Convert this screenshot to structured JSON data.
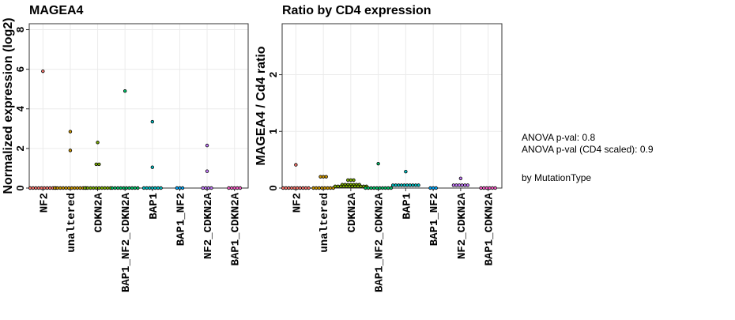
{
  "chart_data": [
    {
      "type": "dotplot",
      "title": "MAGEA4",
      "ylabel": "Normalized expression (log2)",
      "categories": [
        "NF2",
        "unaltered",
        "CDKN2A",
        "BAP1_NF2_CDKN2A",
        "BAP1",
        "BAP1_NF2",
        "NF2_CDKN2A",
        "BAP1_CDKN2A"
      ],
      "colors": [
        "#F8766D",
        "#CD9600",
        "#7CAE00",
        "#00BE67",
        "#00BFC4",
        "#00A9FF",
        "#C77CFF",
        "#FF61CC"
      ],
      "values": [
        [
          5.9,
          0,
          0,
          0,
          0,
          0,
          0,
          0,
          0,
          0,
          0
        ],
        [
          2.85,
          1.9,
          0,
          0,
          0,
          0,
          0,
          0,
          0,
          0,
          0,
          0,
          0,
          0
        ],
        [
          2.3,
          1.2,
          1.2,
          0,
          0,
          0,
          0,
          0,
          0,
          0,
          0,
          0,
          0
        ],
        [
          4.9,
          0,
          0,
          0,
          0,
          0,
          0,
          0,
          0,
          0,
          0
        ],
        [
          3.35,
          1.05,
          0,
          0,
          0,
          0,
          0,
          0,
          0
        ],
        [
          0,
          0,
          0
        ],
        [
          2.15,
          0.85,
          0,
          0,
          0,
          0
        ],
        [
          0,
          0,
          0,
          0,
          0
        ]
      ],
      "ylim": [
        0,
        8.3
      ],
      "yticks": [
        0,
        2,
        4,
        6,
        8
      ],
      "grid": true
    },
    {
      "type": "dotplot",
      "title": "Ratio by CD4 expression",
      "ylabel": "MAGEA4 / Cd4 ratio",
      "categories": [
        "NF2",
        "unaltered",
        "CDKN2A",
        "BAP1_NF2_CDKN2A",
        "BAP1",
        "BAP1_NF2",
        "NF2_CDKN2A",
        "BAP1_CDKN2A"
      ],
      "colors": [
        "#F8766D",
        "#CD9600",
        "#7CAE00",
        "#00BE67",
        "#00BFC4",
        "#00A9FF",
        "#C77CFF",
        "#FF61CC"
      ],
      "values": [
        [
          0.41,
          0,
          0,
          0,
          0,
          0,
          0,
          0,
          0,
          0,
          0
        ],
        [
          0.2,
          0.2,
          0.2,
          0,
          0,
          0,
          0,
          0,
          0,
          0,
          0
        ],
        [
          0.14,
          0.14,
          0.14,
          0.06,
          0.06,
          0.06,
          0.06,
          0.06,
          0.06,
          0.06,
          0.03,
          0.03,
          0.03,
          0.03,
          0.03,
          0.03,
          0.03,
          0.03,
          0.03,
          0.03,
          0.03,
          0.03
        ],
        [
          0.43,
          0,
          0,
          0,
          0,
          0,
          0,
          0,
          0,
          0,
          0
        ],
        [
          0.29,
          0.05,
          0.05,
          0.05,
          0.05,
          0.05,
          0.05,
          0.05,
          0.05,
          0.05,
          0.05
        ],
        [
          0,
          0,
          0
        ],
        [
          0.17,
          0.05,
          0.05,
          0.05,
          0.05,
          0.05,
          0.05
        ],
        [
          0,
          0,
          0,
          0,
          0,
          0
        ]
      ],
      "ylim": [
        0,
        2.9
      ],
      "yticks": [
        0,
        1,
        2
      ],
      "grid": true
    }
  ],
  "annotations": [
    "ANOVA p-val:  0.8",
    "ANOVA p-val (CD4 scaled):  0.9",
    "by  MutationType"
  ]
}
